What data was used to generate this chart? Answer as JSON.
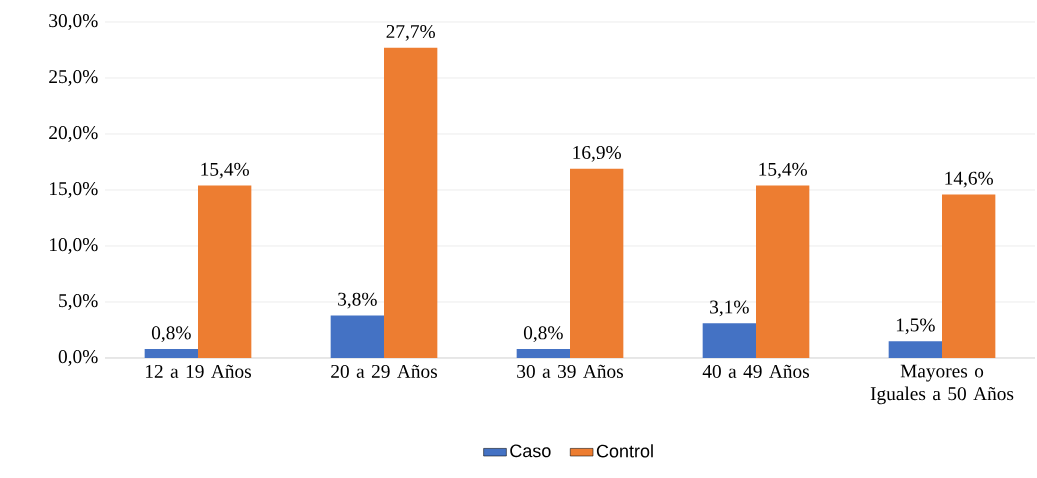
{
  "chart_data": {
    "type": "bar",
    "categories": [
      "12 a 19 Años",
      "20 a 29 Años",
      "30 a 39 Años",
      "40 a 49 Años",
      "Mayores o Iguales a 50 Años"
    ],
    "series": [
      {
        "name": "Caso",
        "color": "#4472c4",
        "values": [
          0.8,
          3.8,
          0.8,
          3.1,
          1.5
        ],
        "value_labels": [
          "0,8%",
          "3,8%",
          "0,8%",
          "3,1%",
          "1,5%"
        ]
      },
      {
        "name": "Control",
        "color": "#ed7d31",
        "values": [
          15.4,
          27.7,
          16.9,
          15.4,
          14.6
        ],
        "value_labels": [
          "15,4%",
          "27,7%",
          "16,9%",
          "15,4%",
          "14,6%"
        ]
      }
    ],
    "ylim": [
      0,
      30
    ],
    "yticks": [
      {
        "value": 0,
        "label": "0,0%"
      },
      {
        "value": 5,
        "label": "5,0%"
      },
      {
        "value": 10,
        "label": "10,0%"
      },
      {
        "value": 15,
        "label": "15,0%"
      },
      {
        "value": 20,
        "label": "20,0%"
      },
      {
        "value": 25,
        "label": "25,0%"
      },
      {
        "value": 30,
        "label": "30,0%"
      }
    ],
    "grid": "y",
    "legend": "bottom"
  }
}
